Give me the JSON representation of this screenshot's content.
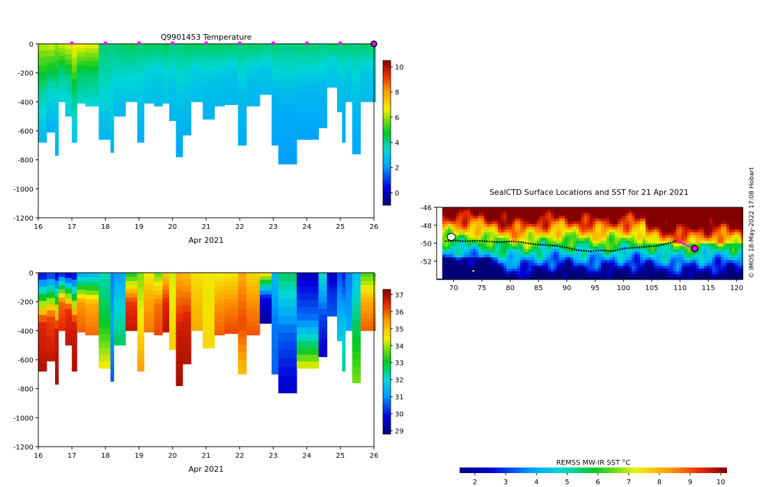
{
  "chart_data": [
    {
      "type": "heatmap",
      "name": "temperature-section",
      "title": "Q9901453  Temperature",
      "xlabel": "Apr 2021",
      "ylabel": "",
      "x_ticks": [
        16,
        17,
        18,
        19,
        20,
        21,
        22,
        23,
        24,
        25,
        26
      ],
      "y_ticks": [
        0,
        -200,
        -400,
        -600,
        -800,
        -1000,
        -1200
      ],
      "xlim": [
        16,
        26
      ],
      "ylim": [
        -1200,
        0
      ],
      "colorbar": {
        "min": -1,
        "max": 10.5,
        "ticks": [
          0,
          2,
          4,
          6,
          8,
          10
        ]
      },
      "profile_markers_day": [
        17,
        18,
        19,
        20,
        21,
        22,
        23,
        24,
        25
      ],
      "last_profile_day": 26,
      "profiles": [
        {
          "x0": 16.0,
          "x1": 16.25,
          "depth": 680,
          "surf": 6.2,
          "mid": 3.8,
          "deep": 2.6
        },
        {
          "x0": 16.25,
          "x1": 16.5,
          "depth": 610,
          "surf": 6.4,
          "mid": 3.5,
          "deep": 2.4
        },
        {
          "x0": 16.5,
          "x1": 16.6,
          "depth": 770,
          "surf": 6.0,
          "mid": 3.2,
          "deep": 2.4
        },
        {
          "x0": 16.6,
          "x1": 16.8,
          "depth": 400,
          "surf": 6.4,
          "mid": 4.0,
          "deep": 3.2
        },
        {
          "x0": 16.8,
          "x1": 17.0,
          "depth": 500,
          "surf": 6.6,
          "mid": 3.9,
          "deep": 3.0
        },
        {
          "x0": 17.0,
          "x1": 17.15,
          "depth": 680,
          "surf": 7.0,
          "mid": 4.2,
          "deep": 2.8
        },
        {
          "x0": 17.15,
          "x1": 17.4,
          "depth": 410,
          "surf": 6.8,
          "mid": 4.3,
          "deep": 3.4
        },
        {
          "x0": 17.4,
          "x1": 17.8,
          "depth": 430,
          "surf": 6.6,
          "mid": 4.2,
          "deep": 3.3
        },
        {
          "x0": 17.8,
          "x1": 18.15,
          "depth": 660,
          "surf": 4.2,
          "mid": 3.4,
          "deep": 2.6
        },
        {
          "x0": 18.15,
          "x1": 18.25,
          "depth": 750,
          "surf": 4.0,
          "mid": 3.2,
          "deep": 2.5
        },
        {
          "x0": 18.25,
          "x1": 18.6,
          "depth": 500,
          "surf": 4.3,
          "mid": 3.3,
          "deep": 2.6
        },
        {
          "x0": 18.6,
          "x1": 18.95,
          "depth": 400,
          "surf": 4.4,
          "mid": 3.5,
          "deep": 2.9
        },
        {
          "x0": 18.95,
          "x1": 19.15,
          "depth": 680,
          "surf": 4.2,
          "mid": 3.0,
          "deep": 2.4
        },
        {
          "x0": 19.15,
          "x1": 19.45,
          "depth": 410,
          "surf": 4.4,
          "mid": 3.2,
          "deep": 2.8
        },
        {
          "x0": 19.45,
          "x1": 19.7,
          "depth": 430,
          "surf": 4.3,
          "mid": 3.1,
          "deep": 2.7
        },
        {
          "x0": 19.7,
          "x1": 19.9,
          "depth": 410,
          "surf": 4.4,
          "mid": 3.3,
          "deep": 2.9
        },
        {
          "x0": 19.9,
          "x1": 20.1,
          "depth": 530,
          "surf": 4.2,
          "mid": 3.0,
          "deep": 2.5
        },
        {
          "x0": 20.1,
          "x1": 20.3,
          "depth": 780,
          "surf": 4.1,
          "mid": 2.9,
          "deep": 2.3
        },
        {
          "x0": 20.3,
          "x1": 20.55,
          "depth": 630,
          "surf": 4.3,
          "mid": 3.0,
          "deep": 2.4
        },
        {
          "x0": 20.55,
          "x1": 20.9,
          "depth": 400,
          "surf": 4.4,
          "mid": 3.1,
          "deep": 2.8
        },
        {
          "x0": 20.9,
          "x1": 21.25,
          "depth": 520,
          "surf": 4.3,
          "mid": 2.9,
          "deep": 2.5
        },
        {
          "x0": 21.25,
          "x1": 21.55,
          "depth": 430,
          "surf": 4.4,
          "mid": 3.0,
          "deep": 2.7
        },
        {
          "x0": 21.55,
          "x1": 21.95,
          "depth": 420,
          "surf": 4.3,
          "mid": 2.9,
          "deep": 2.6
        },
        {
          "x0": 21.95,
          "x1": 22.2,
          "depth": 700,
          "surf": 4.2,
          "mid": 2.8,
          "deep": 2.3
        },
        {
          "x0": 22.2,
          "x1": 22.6,
          "depth": 430,
          "surf": 4.3,
          "mid": 2.9,
          "deep": 2.6
        },
        {
          "x0": 22.6,
          "x1": 22.95,
          "depth": 350,
          "surf": 4.2,
          "mid": 3.0,
          "deep": 2.7
        },
        {
          "x0": 22.95,
          "x1": 23.15,
          "depth": 700,
          "surf": 4.2,
          "mid": 2.6,
          "deep": 2.2
        },
        {
          "x0": 23.15,
          "x1": 23.7,
          "depth": 830,
          "surf": 4.1,
          "mid": 2.5,
          "deep": 2.1
        },
        {
          "x0": 23.7,
          "x1": 24.35,
          "depth": 660,
          "surf": 4.2,
          "mid": 2.6,
          "deep": 2.2
        },
        {
          "x0": 24.35,
          "x1": 24.6,
          "depth": 580,
          "surf": 4.1,
          "mid": 2.7,
          "deep": 2.3
        },
        {
          "x0": 24.6,
          "x1": 24.9,
          "depth": 300,
          "surf": 4.3,
          "mid": 3.1,
          "deep": 2.8
        },
        {
          "x0": 24.9,
          "x1": 25.05,
          "depth": 470,
          "surf": 4.2,
          "mid": 3.0,
          "deep": 2.6
        },
        {
          "x0": 25.05,
          "x1": 25.15,
          "depth": 680,
          "surf": 4.1,
          "mid": 2.8,
          "deep": 2.4
        },
        {
          "x0": 25.15,
          "x1": 25.35,
          "depth": 400,
          "surf": 4.3,
          "mid": 3.0,
          "deep": 2.7
        },
        {
          "x0": 25.35,
          "x1": 25.6,
          "depth": 760,
          "surf": 4.1,
          "mid": 2.8,
          "deep": 2.3
        },
        {
          "x0": 25.6,
          "x1": 26.05,
          "depth": 400,
          "surf": 4.3,
          "mid": 3.0,
          "deep": 2.7
        }
      ]
    },
    {
      "type": "heatmap",
      "name": "salinity-section",
      "title": "",
      "xlabel": "Apr 2021",
      "x_ticks": [
        16,
        17,
        18,
        19,
        20,
        21,
        22,
        23,
        24,
        25,
        26
      ],
      "y_ticks": [
        0,
        -200,
        -400,
        -600,
        -800,
        -1000,
        -1200
      ],
      "xlim": [
        16,
        26
      ],
      "ylim": [
        -1200,
        0
      ],
      "colorbar": {
        "min": 28.8,
        "max": 37.3,
        "ticks": [
          29,
          30,
          31,
          32,
          33,
          34,
          35,
          36,
          37
        ]
      },
      "profiles": [
        {
          "x0": 16.0,
          "x1": 16.25,
          "depth": 680,
          "surf": 29.6,
          "mid": 36.5,
          "deep": 36.9
        },
        {
          "x0": 16.25,
          "x1": 16.5,
          "depth": 610,
          "surf": 30.0,
          "mid": 36.2,
          "deep": 36.8
        },
        {
          "x0": 16.5,
          "x1": 16.6,
          "depth": 770,
          "surf": 29.4,
          "mid": 36.7,
          "deep": 37.0
        },
        {
          "x0": 16.6,
          "x1": 16.8,
          "depth": 400,
          "surf": 29.8,
          "mid": 35.9,
          "deep": 36.5
        },
        {
          "x0": 16.8,
          "x1": 17.0,
          "depth": 500,
          "surf": 29.3,
          "mid": 36.4,
          "deep": 36.8
        },
        {
          "x0": 17.0,
          "x1": 17.15,
          "depth": 680,
          "surf": 29.5,
          "mid": 36.6,
          "deep": 37.0
        },
        {
          "x0": 17.15,
          "x1": 17.4,
          "depth": 410,
          "surf": 31.0,
          "mid": 35.5,
          "deep": 36.0
        },
        {
          "x0": 17.4,
          "x1": 17.8,
          "depth": 430,
          "surf": 31.2,
          "mid": 35.3,
          "deep": 35.9
        },
        {
          "x0": 17.8,
          "x1": 18.15,
          "depth": 660,
          "surf": 32.2,
          "mid": 33.0,
          "deep": 34.5
        },
        {
          "x0": 18.15,
          "x1": 18.25,
          "depth": 750,
          "surf": 30.8,
          "mid": 31.2,
          "deep": 30.5
        },
        {
          "x0": 18.25,
          "x1": 18.6,
          "depth": 500,
          "surf": 31.1,
          "mid": 32.0,
          "deep": 32.8
        },
        {
          "x0": 18.6,
          "x1": 18.95,
          "depth": 400,
          "surf": 33.0,
          "mid": 36.3,
          "deep": 36.8
        },
        {
          "x0": 18.95,
          "x1": 19.15,
          "depth": 680,
          "surf": 33.8,
          "mid": 34.5,
          "deep": 35.5
        },
        {
          "x0": 19.15,
          "x1": 19.45,
          "depth": 410,
          "surf": 34.4,
          "mid": 35.4,
          "deep": 35.8
        },
        {
          "x0": 19.45,
          "x1": 19.7,
          "depth": 430,
          "surf": 33.6,
          "mid": 35.8,
          "deep": 36.2
        },
        {
          "x0": 19.7,
          "x1": 19.9,
          "depth": 410,
          "surf": 34.8,
          "mid": 36.5,
          "deep": 36.9
        },
        {
          "x0": 19.9,
          "x1": 20.1,
          "depth": 530,
          "surf": 34.2,
          "mid": 34.6,
          "deep": 34.8
        },
        {
          "x0": 20.1,
          "x1": 20.3,
          "depth": 780,
          "surf": 35.2,
          "mid": 36.7,
          "deep": 37.0
        },
        {
          "x0": 20.3,
          "x1": 20.55,
          "depth": 630,
          "surf": 35.0,
          "mid": 36.6,
          "deep": 36.9
        },
        {
          "x0": 20.55,
          "x1": 20.9,
          "depth": 400,
          "surf": 34.6,
          "mid": 35.0,
          "deep": 35.3
        },
        {
          "x0": 20.9,
          "x1": 21.25,
          "depth": 520,
          "surf": 34.5,
          "mid": 34.6,
          "deep": 34.7
        },
        {
          "x0": 21.25,
          "x1": 21.55,
          "depth": 430,
          "surf": 34.4,
          "mid": 35.5,
          "deep": 36.0
        },
        {
          "x0": 21.55,
          "x1": 21.95,
          "depth": 420,
          "surf": 34.5,
          "mid": 35.6,
          "deep": 36.2
        },
        {
          "x0": 21.95,
          "x1": 22.2,
          "depth": 700,
          "surf": 35.3,
          "mid": 36.2,
          "deep": 35.0
        },
        {
          "x0": 22.2,
          "x1": 22.6,
          "depth": 430,
          "surf": 34.7,
          "mid": 35.6,
          "deep": 36.1
        },
        {
          "x0": 22.6,
          "x1": 22.95,
          "depth": 350,
          "surf": 34.9,
          "mid": 29.8,
          "deep": 29.2
        },
        {
          "x0": 22.95,
          "x1": 23.15,
          "depth": 700,
          "surf": 31.5,
          "mid": 30.8,
          "deep": 30.6
        },
        {
          "x0": 23.15,
          "x1": 23.7,
          "depth": 830,
          "surf": 32.8,
          "mid": 30.6,
          "deep": 29.6
        },
        {
          "x0": 23.7,
          "x1": 24.35,
          "depth": 660,
          "surf": 29.5,
          "mid": 30.8,
          "deep": 34.5
        },
        {
          "x0": 24.35,
          "x1": 24.6,
          "depth": 580,
          "surf": 32.2,
          "mid": 30.4,
          "deep": 29.6
        },
        {
          "x0": 24.6,
          "x1": 24.9,
          "depth": 300,
          "surf": 29.6,
          "mid": 30.2,
          "deep": 30.5
        },
        {
          "x0": 24.9,
          "x1": 25.05,
          "depth": 470,
          "surf": 30.4,
          "mid": 31.2,
          "deep": 31.8
        },
        {
          "x0": 25.05,
          "x1": 25.15,
          "depth": 680,
          "surf": 30.0,
          "mid": 31.6,
          "deep": 32.4
        },
        {
          "x0": 25.15,
          "x1": 25.35,
          "depth": 400,
          "surf": 30.8,
          "mid": 31.0,
          "deep": 31.3
        },
        {
          "x0": 25.35,
          "x1": 25.6,
          "depth": 760,
          "surf": 31.5,
          "mid": 32.8,
          "deep": 33.8
        },
        {
          "x0": 25.6,
          "x1": 26.05,
          "depth": 400,
          "surf": 33.4,
          "mid": 35.3,
          "deep": 36.0
        }
      ]
    },
    {
      "type": "heatmap",
      "name": "sst-map",
      "title": "SealCTD Surface Locations and SST for 21 Apr 2021",
      "x_ticks": [
        70,
        75,
        80,
        85,
        90,
        95,
        100,
        105,
        110,
        115,
        120
      ],
      "y_ticks": [
        -46,
        -48,
        -50,
        -52
      ],
      "xlim": [
        67,
        121
      ],
      "ylim": [
        -54,
        -46
      ],
      "colorbar": {
        "label": "REMSS MW-IR SST °C",
        "min": 1.5,
        "max": 10.2,
        "ticks": [
          2,
          3,
          4,
          5,
          6,
          7,
          8,
          9,
          10
        ]
      },
      "track_lon": [
        68.5,
        70,
        72,
        74,
        76,
        78,
        80,
        82,
        84,
        86,
        88,
        90,
        92,
        94,
        96,
        98,
        100,
        102,
        104,
        106,
        108,
        109.5,
        111,
        112.6
      ],
      "track_lat": [
        -49.8,
        -49.7,
        -49.8,
        -49.7,
        -49.8,
        -49.9,
        -49.8,
        -49.9,
        -50.1,
        -50.2,
        -50.3,
        -50.5,
        -50.8,
        -50.9,
        -50.8,
        -50.9,
        -50.6,
        -50.5,
        -50.4,
        -50.3,
        -50.0,
        -49.7,
        -50.2,
        -50.6
      ],
      "current_position": {
        "lon": 112.6,
        "lat": -50.6
      }
    }
  ],
  "credit": "© IMOS 18-May-2022 17:08 Hobart",
  "colors": {
    "marker_magenta": "#ff00ff",
    "track": "#000000",
    "background": "#ffffff"
  }
}
